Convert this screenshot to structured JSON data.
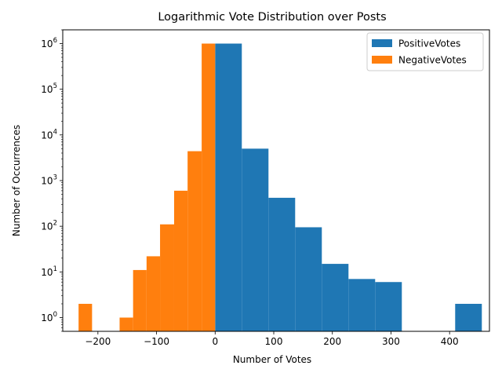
{
  "chart_data": {
    "type": "bar",
    "title": "Logarithmic Vote Distribution over Posts",
    "xlabel": "Number of Votes",
    "ylabel": "Number of Occurrences",
    "yscale": "log",
    "xlim": [
      -260,
      468
    ],
    "ylim": [
      0.5,
      2000000
    ],
    "grid": false,
    "legend_position": "top-right",
    "x_ticks": [
      {
        "value": -200,
        "label": "−200"
      },
      {
        "value": -100,
        "label": "−100"
      },
      {
        "value": 0,
        "label": "0"
      },
      {
        "value": 100,
        "label": "100"
      },
      {
        "value": 200,
        "label": "200"
      },
      {
        "value": 300,
        "label": "300"
      },
      {
        "value": 400,
        "label": "400"
      }
    ],
    "y_ticks": [
      {
        "value": 1,
        "base": "10",
        "exp": "0"
      },
      {
        "value": 10,
        "base": "10",
        "exp": "1"
      },
      {
        "value": 100,
        "base": "10",
        "exp": "2"
      },
      {
        "value": 1000,
        "base": "10",
        "exp": "3"
      },
      {
        "value": 10000,
        "base": "10",
        "exp": "4"
      },
      {
        "value": 100000,
        "base": "10",
        "exp": "5"
      },
      {
        "value": 1000000,
        "base": "10",
        "exp": "6"
      }
    ],
    "series": [
      {
        "name": "PositiveVotes",
        "color": "#1f77b4",
        "bins": [
          {
            "x0": 0,
            "x1": 45.5,
            "count": 1000000
          },
          {
            "x0": 45.5,
            "x1": 91,
            "count": 5000
          },
          {
            "x0": 91,
            "x1": 136.5,
            "count": 420
          },
          {
            "x0": 136.5,
            "x1": 182,
            "count": 95
          },
          {
            "x0": 182,
            "x1": 227.5,
            "count": 15
          },
          {
            "x0": 227.5,
            "x1": 273,
            "count": 7
          },
          {
            "x0": 273,
            "x1": 318.5,
            "count": 6
          },
          {
            "x0": 409.5,
            "x1": 455,
            "count": 2
          }
        ]
      },
      {
        "name": "NegativeVotes",
        "color": "#ff7f0e",
        "bins": [
          {
            "x0": -233,
            "x1": -210,
            "count": 2
          },
          {
            "x0": -163,
            "x1": -140,
            "count": 1
          },
          {
            "x0": -140,
            "x1": -117,
            "count": 11
          },
          {
            "x0": -117,
            "x1": -94,
            "count": 22
          },
          {
            "x0": -94,
            "x1": -70,
            "count": 110
          },
          {
            "x0": -70,
            "x1": -47,
            "count": 600
          },
          {
            "x0": -47,
            "x1": -23,
            "count": 4400
          },
          {
            "x0": -23,
            "x1": 0,
            "count": 1000000
          }
        ]
      }
    ]
  }
}
